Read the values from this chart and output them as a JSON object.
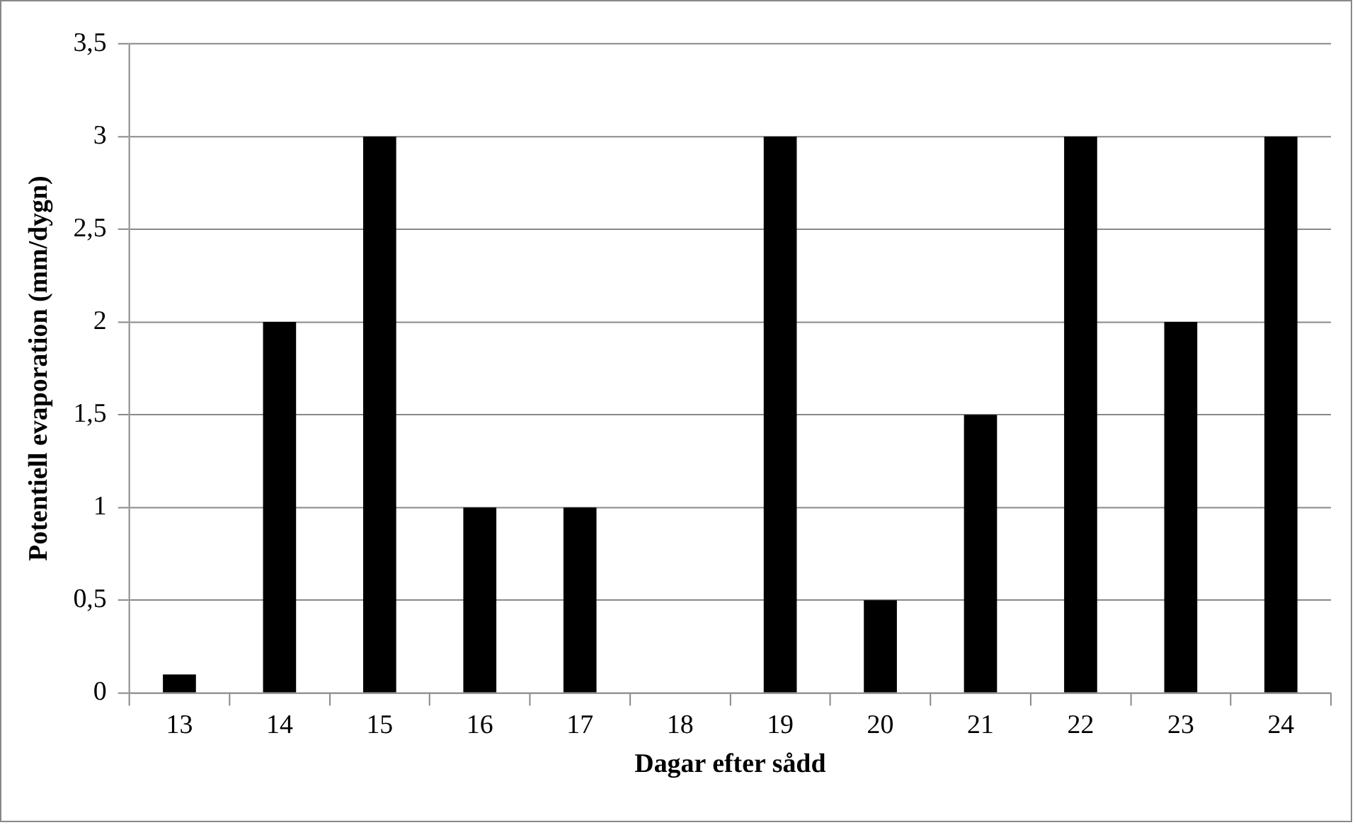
{
  "chart_data": {
    "type": "bar",
    "xlabel": "Dagar efter sådd",
    "ylabel": "Potentiell evaporation (mm/dygn)",
    "categories": [
      "13",
      "14",
      "15",
      "16",
      "17",
      "18",
      "19",
      "20",
      "21",
      "22",
      "23",
      "24"
    ],
    "values": [
      0.1,
      2,
      3,
      1,
      1,
      0,
      3,
      0.5,
      1.5,
      3,
      2,
      3
    ],
    "color": "#000000",
    "ylim": [
      0,
      3.5
    ],
    "yticks": [
      0,
      {
        "value": 0.5,
        "label": "0,5"
      },
      1,
      {
        "value": 1.5,
        "label": "1,5"
      },
      2,
      {
        "value": 2.5,
        "label": "2,5"
      },
      3,
      {
        "value": 3.5,
        "label": "3,5"
      }
    ],
    "grid": "y"
  }
}
